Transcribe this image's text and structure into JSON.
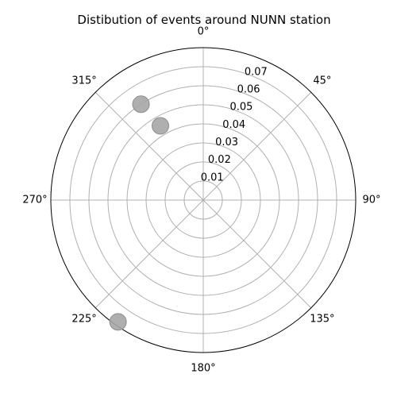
{
  "chart_data": {
    "type": "scatter",
    "projection": "polar",
    "title": "Distibution of events around NUNN station",
    "theta_zero_location": "N",
    "theta_direction": "clockwise",
    "theta_ticks": [
      0,
      45,
      90,
      135,
      180,
      225,
      270,
      315
    ],
    "theta_tick_labels": [
      "0°",
      "45°",
      "90°",
      "135°",
      "180°",
      "225°",
      "270°",
      "315°"
    ],
    "r_ticks": [
      0.01,
      0.02,
      0.03,
      0.04,
      0.05,
      0.06,
      0.07
    ],
    "r_tick_labels": [
      "0.01",
      "0.02",
      "0.03",
      "0.04",
      "0.05",
      "0.06",
      "0.07"
    ],
    "r_label_angle_deg": 22.5,
    "rlim": [
      0,
      0.08
    ],
    "grid": true,
    "series": [
      {
        "points": [
          {
            "theta_deg": 327,
            "r": 0.06
          },
          {
            "theta_deg": 330,
            "r": 0.045
          },
          {
            "theta_deg": 215,
            "r": 0.078
          }
        ]
      }
    ],
    "colors": {
      "marker_fill": "#a6a6a6",
      "marker_edge": "#8c8c8c",
      "grid": "#b0b0b0",
      "frame": "#000000",
      "text": "#000000"
    }
  }
}
